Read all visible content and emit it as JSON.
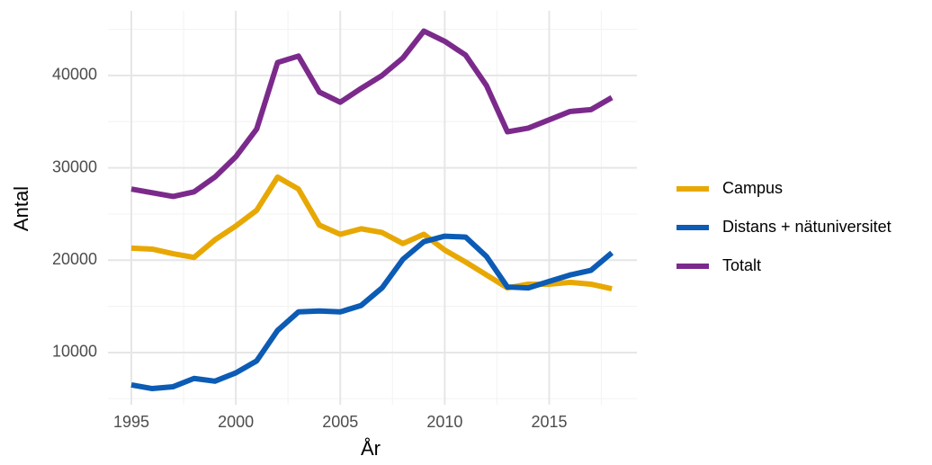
{
  "chart_data": {
    "type": "line",
    "x_label": "År",
    "y_label": "Antal",
    "x": [
      1995,
      1996,
      1997,
      1998,
      1999,
      2000,
      2001,
      2002,
      2003,
      2004,
      2005,
      2006,
      2007,
      2008,
      2009,
      2010,
      2011,
      2012,
      2013,
      2014,
      2015,
      2016,
      2017,
      2018
    ],
    "series": [
      {
        "name": "Campus",
        "color": "#e8a803",
        "values": [
          21300,
          21200,
          20700,
          20300,
          22200,
          23700,
          25400,
          29000,
          27700,
          23800,
          22800,
          23400,
          23000,
          21800,
          22800,
          21100,
          19800,
          18400,
          17000,
          17400,
          17400,
          17600,
          17400,
          16900
        ]
      },
      {
        "name": "Distans + nätuniversitet",
        "color": "#0c5bb5",
        "values": [
          6500,
          6100,
          6300,
          7200,
          6900,
          7800,
          9100,
          12400,
          14400,
          14500,
          14400,
          15100,
          17000,
          20100,
          22000,
          22600,
          22500,
          20400,
          17100,
          17000,
          17700,
          18400,
          18900,
          20800
        ]
      },
      {
        "name": "Totalt",
        "color": "#7b2a8c",
        "values": [
          27700,
          27300,
          26900,
          27400,
          29000,
          31200,
          34200,
          41400,
          42100,
          38200,
          37100,
          38600,
          40000,
          41900,
          44800,
          43700,
          42200,
          38900,
          33900,
          34300,
          35200,
          36100,
          36300,
          37600
        ]
      }
    ],
    "xlim": [
      1993.88,
      2019.2
    ],
    "xticks": [
      1995,
      2000,
      2005,
      2010,
      2015
    ],
    "minor_xticks": [
      1997.5,
      2002.5,
      2007.5,
      2012.5,
      2017.5
    ],
    "ylim": [
      4350,
      47000
    ],
    "yticks": [
      10000,
      20000,
      30000,
      40000
    ],
    "minor_yticks": [
      5000,
      15000,
      25000,
      35000,
      45000
    ],
    "grid": true,
    "legend": "right"
  }
}
